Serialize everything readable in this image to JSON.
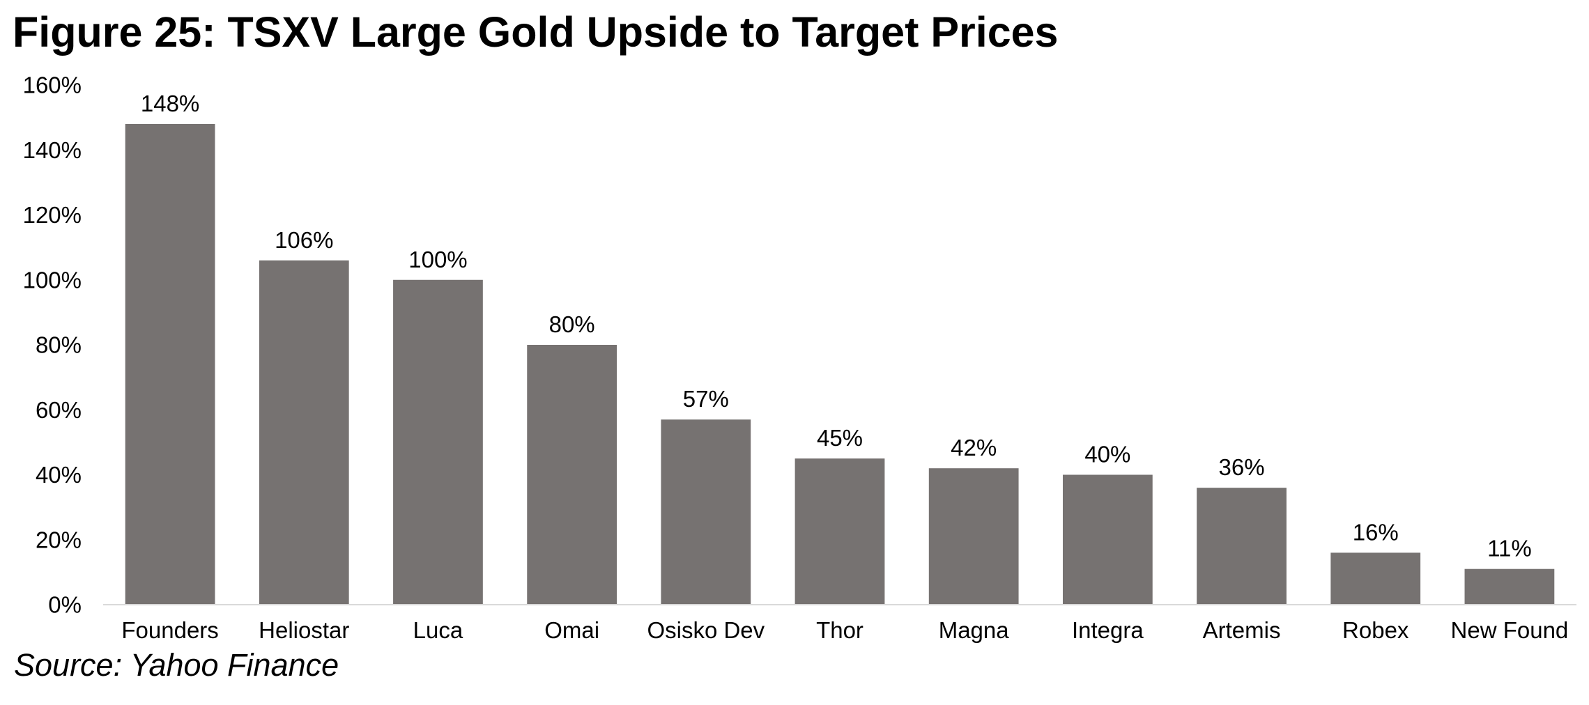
{
  "title": "Figure 25: TSXV Large Gold Upside to Target Prices",
  "source": "Source: Yahoo Finance",
  "chart_data": {
    "type": "bar",
    "title": "Figure 25: TSXV Large Gold Upside to Target Prices",
    "xlabel": "",
    "ylabel": "",
    "categories": [
      "Founders",
      "Heliostar",
      "Luca",
      "Omai",
      "Osisko Dev",
      "Thor",
      "Magna",
      "Integra",
      "Artemis",
      "Robex",
      "New Found"
    ],
    "values": [
      148,
      106,
      100,
      80,
      57,
      45,
      42,
      40,
      36,
      16,
      11
    ],
    "data_labels": [
      "148%",
      "106%",
      "100%",
      "80%",
      "57%",
      "45%",
      "42%",
      "40%",
      "36%",
      "16%",
      "11%"
    ],
    "ylim": [
      0,
      160
    ],
    "yticks": [
      0,
      20,
      40,
      60,
      80,
      100,
      120,
      140,
      160
    ],
    "ytick_labels": [
      "0%",
      "20%",
      "40%",
      "60%",
      "80%",
      "100%",
      "120%",
      "140%",
      "160%"
    ],
    "unit": "%",
    "bar_color": "#767271",
    "axis_color": "#d9d9d9",
    "grid": false,
    "legend": "none"
  }
}
